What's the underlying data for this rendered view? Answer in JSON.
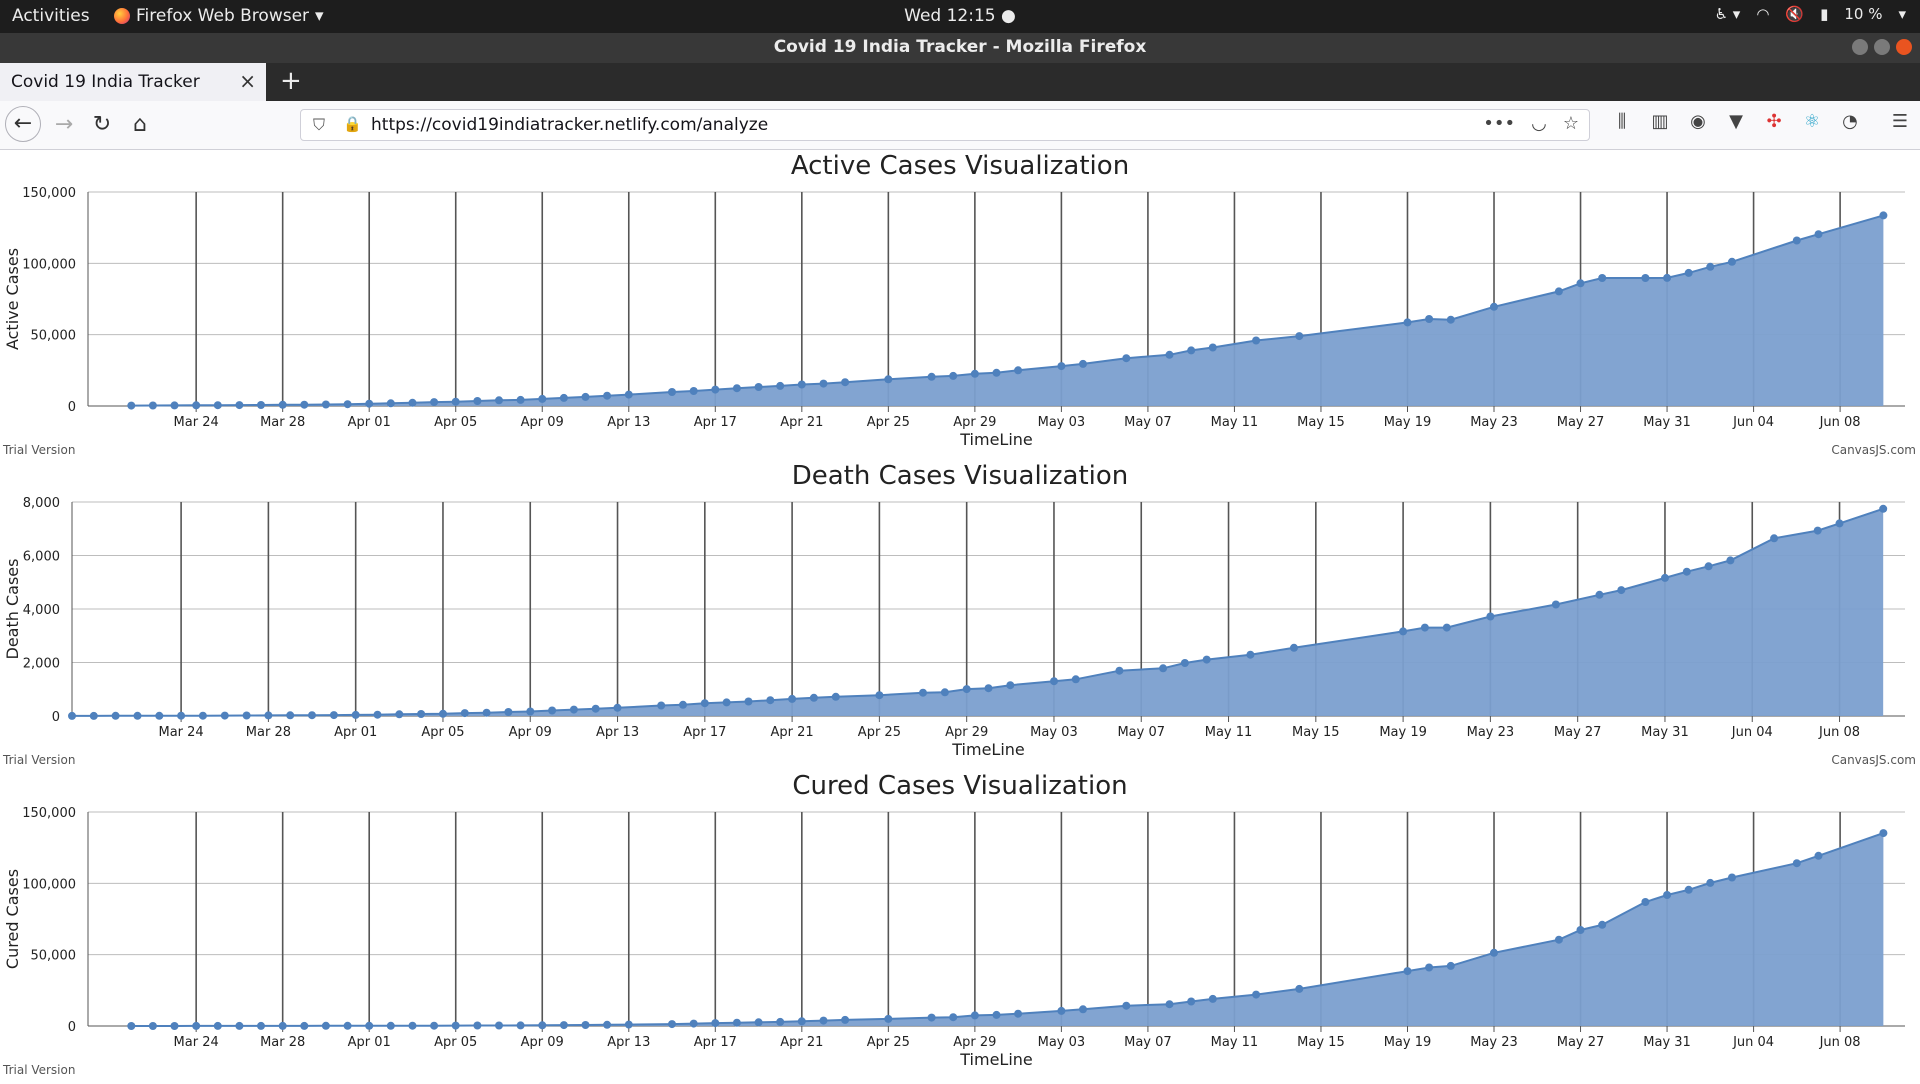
{
  "system_bar": {
    "activities": "Activities",
    "app_name": "Firefox Web Browser",
    "clock": "Wed 12:15",
    "battery": "10 %"
  },
  "window": {
    "title": "Covid 19 India Tracker - Mozilla Firefox"
  },
  "tabs": [
    {
      "label": "Covid 19 India Tracker"
    }
  ],
  "address_bar": {
    "url": "https://covid19indiatracker.netlify.com/analyze"
  },
  "colors": {
    "series_fill": "#7b9fcf",
    "series_line": "#4f81bd",
    "grid": "#555555",
    "topbar": "#1d1d1d"
  },
  "icons": [
    "firefox-icon",
    "back-icon",
    "forward-icon",
    "reload-icon",
    "home-icon",
    "shield-icon",
    "lock-icon",
    "more-icon",
    "pocket-icon",
    "bookmark-star-icon",
    "library-icon",
    "sidebar-icon",
    "account-icon",
    "extension-icon",
    "menu-icon",
    "accessibility-icon",
    "wifi-icon",
    "volume-muted-icon",
    "battery-icon"
  ],
  "chart_data": [
    {
      "type": "area",
      "title": "Active Cases Visualization",
      "xlabel": "TimeLine",
      "ylabel": "Active Cases",
      "ylim": [
        0,
        150000
      ],
      "yticks": [
        "0",
        "50,000",
        "100,000",
        "150,000"
      ],
      "ytick_values": [
        0,
        50000,
        100000,
        150000
      ],
      "xlim": [
        "Mar 19",
        "Jun 11"
      ],
      "xticks": [
        "Mar 24",
        "Mar 28",
        "Apr 01",
        "Apr 05",
        "Apr 09",
        "Apr 13",
        "Apr 17",
        "Apr 21",
        "Apr 25",
        "Apr 29",
        "May 03",
        "May 07",
        "May 11",
        "May 15",
        "May 19",
        "May 23",
        "May 27",
        "May 31",
        "Jun 04",
        "Jun 08"
      ],
      "grid": true,
      "credit_left": "Trial Version",
      "credit_right": "CanvasJS.com",
      "x": [
        "Mar 21",
        "Mar 22",
        "Mar 23",
        "Mar 24",
        "Mar 25",
        "Mar 26",
        "Mar 27",
        "Mar 28",
        "Mar 29",
        "Mar 30",
        "Mar 31",
        "Apr 01",
        "Apr 02",
        "Apr 03",
        "Apr 04",
        "Apr 05",
        "Apr 06",
        "Apr 07",
        "Apr 08",
        "Apr 09",
        "Apr 10",
        "Apr 11",
        "Apr 12",
        "Apr 13",
        "Apr 15",
        "Apr 16",
        "Apr 17",
        "Apr 18",
        "Apr 19",
        "Apr 20",
        "Apr 21",
        "Apr 22",
        "Apr 23",
        "Apr 25",
        "Apr 27",
        "Apr 28",
        "Apr 29",
        "Apr 30",
        "May 01",
        "May 03",
        "May 04",
        "May 06",
        "May 08",
        "May 09",
        "May 10",
        "May 12",
        "May 14",
        "May 19",
        "May 20",
        "May 21",
        "May 23",
        "May 26",
        "May 27",
        "May 28",
        "May 30",
        "May 31",
        "Jun 01",
        "Jun 02",
        "Jun 03",
        "Jun 06",
        "Jun 07",
        "Jun 10"
      ],
      "values": [
        250,
        320,
        400,
        480,
        560,
        640,
        720,
        820,
        900,
        1050,
        1250,
        1600,
        1900,
        2250,
        2700,
        3000,
        3500,
        4000,
        4300,
        5000,
        5700,
        6400,
        7200,
        8000,
        9800,
        10500,
        11500,
        12500,
        13300,
        14100,
        15100,
        15700,
        16700,
        18700,
        20500,
        21100,
        22600,
        23300,
        25000,
        28000,
        29500,
        33500,
        35900,
        39000,
        41000,
        45900,
        49000,
        58600,
        61000,
        60500,
        69500,
        80300,
        86000,
        89700,
        89700,
        89800,
        93300,
        97600,
        101100,
        116000,
        120400,
        133600
      ]
    },
    {
      "type": "area",
      "title": "Death Cases Visualization",
      "xlabel": "TimeLine",
      "ylabel": "Death Cases",
      "ylim": [
        0,
        8000
      ],
      "yticks": [
        "0",
        "2,000",
        "4,000",
        "6,000",
        "8,000"
      ],
      "ytick_values": [
        0,
        2000,
        4000,
        6000,
        8000
      ],
      "xlim": [
        "Mar 19",
        "Jun 11"
      ],
      "xticks": [
        "Mar 24",
        "Mar 28",
        "Apr 01",
        "Apr 05",
        "Apr 09",
        "Apr 13",
        "Apr 17",
        "Apr 21",
        "Apr 25",
        "Apr 29",
        "May 03",
        "May 07",
        "May 11",
        "May 15",
        "May 19",
        "May 23",
        "May 27",
        "May 31",
        "Jun 04",
        "Jun 08"
      ],
      "grid": true,
      "credit_left": "Trial Version",
      "credit_right": "CanvasJS.com",
      "x": [
        "Mar 19",
        "Mar 20",
        "Mar 21",
        "Mar 22",
        "Mar 23",
        "Mar 24",
        "Mar 25",
        "Mar 26",
        "Mar 27",
        "Mar 28",
        "Mar 29",
        "Mar 30",
        "Mar 31",
        "Apr 01",
        "Apr 02",
        "Apr 03",
        "Apr 04",
        "Apr 05",
        "Apr 06",
        "Apr 07",
        "Apr 08",
        "Apr 09",
        "Apr 10",
        "Apr 11",
        "Apr 12",
        "Apr 13",
        "Apr 15",
        "Apr 16",
        "Apr 17",
        "Apr 18",
        "Apr 19",
        "Apr 20",
        "Apr 21",
        "Apr 22",
        "Apr 23",
        "Apr 25",
        "Apr 27",
        "Apr 28",
        "Apr 29",
        "Apr 30",
        "May 01",
        "May 03",
        "May 04",
        "May 06",
        "May 08",
        "May 09",
        "May 10",
        "May 12",
        "May 14",
        "May 19",
        "May 20",
        "May 21",
        "May 23",
        "May 26",
        "May 28",
        "May 29",
        "May 31",
        "Jun 01",
        "Jun 02",
        "Jun 03",
        "Jun 05",
        "Jun 07",
        "Jun 08",
        "Jun 10"
      ],
      "values": [
        4,
        5,
        6,
        7,
        9,
        10,
        12,
        16,
        19,
        21,
        25,
        29,
        35,
        41,
        50,
        62,
        75,
        84,
        109,
        124,
        149,
        169,
        206,
        239,
        273,
        308,
        392,
        420,
        480,
        507,
        543,
        592,
        640,
        681,
        718,
        779,
        872,
        886,
        1007,
        1040,
        1152,
        1301,
        1373,
        1694,
        1783,
        1981,
        2109,
        2293,
        2549,
        3163,
        3303,
        3303,
        3720,
        4167,
        4531,
        4706,
        5164,
        5394,
        5598,
        5815,
        6642,
        6929,
        7200,
        7745
      ]
    },
    {
      "type": "area",
      "title": "Cured Cases Visualization",
      "xlabel": "TimeLine",
      "ylabel": "Cured Cases",
      "ylim": [
        0,
        150000
      ],
      "yticks": [
        "0",
        "50,000",
        "100,000",
        "150,000"
      ],
      "ytick_values": [
        0,
        50000,
        100000,
        150000
      ],
      "xlim": [
        "Mar 19",
        "Jun 11"
      ],
      "xticks": [
        "Mar 24",
        "Mar 28",
        "Apr 01",
        "Apr 05",
        "Apr 09",
        "Apr 13",
        "Apr 17",
        "Apr 21",
        "Apr 25",
        "Apr 29",
        "May 03",
        "May 07",
        "May 11",
        "May 15",
        "May 19",
        "May 23",
        "May 27",
        "May 31",
        "Jun 04",
        "Jun 08"
      ],
      "grid": true,
      "credit_left": "Trial Version",
      "x": [
        "Mar 21",
        "Mar 22",
        "Mar 23",
        "Mar 24",
        "Mar 25",
        "Mar 26",
        "Mar 27",
        "Mar 28",
        "Mar 29",
        "Mar 30",
        "Mar 31",
        "Apr 01",
        "Apr 02",
        "Apr 03",
        "Apr 04",
        "Apr 05",
        "Apr 06",
        "Apr 07",
        "Apr 08",
        "Apr 09",
        "Apr 10",
        "Apr 11",
        "Apr 12",
        "Apr 13",
        "Apr 15",
        "Apr 16",
        "Apr 17",
        "Apr 18",
        "Apr 19",
        "Apr 20",
        "Apr 21",
        "Apr 22",
        "Apr 23",
        "Apr 25",
        "Apr 27",
        "Apr 28",
        "Apr 29",
        "Apr 30",
        "May 01",
        "May 03",
        "May 04",
        "May 06",
        "May 08",
        "May 09",
        "May 10",
        "May 12",
        "May 14",
        "May 19",
        "May 20",
        "May 21",
        "May 23",
        "May 26",
        "May 27",
        "May 28",
        "May 30",
        "May 31",
        "Jun 01",
        "Jun 02",
        "Jun 03",
        "Jun 06",
        "Jun 07",
        "Jun 10"
      ],
      "values": [
        20,
        25,
        30,
        40,
        45,
        50,
        70,
        85,
        100,
        120,
        140,
        150,
        170,
        190,
        220,
        260,
        320,
        380,
        450,
        520,
        620,
        730,
        850,
        1000,
        1350,
        1650,
        2000,
        2300,
        2600,
        2900,
        3300,
        3800,
        4300,
        5000,
        5900,
        6200,
        7400,
        7800,
        8600,
        10600,
        11700,
        14200,
        15300,
        17200,
        19000,
        22000,
        26000,
        38500,
        41000,
        42100,
        51300,
        60500,
        67300,
        70900,
        86900,
        91800,
        95500,
        100300,
        104100,
        114100,
        119300,
        135200
      ]
    }
  ]
}
